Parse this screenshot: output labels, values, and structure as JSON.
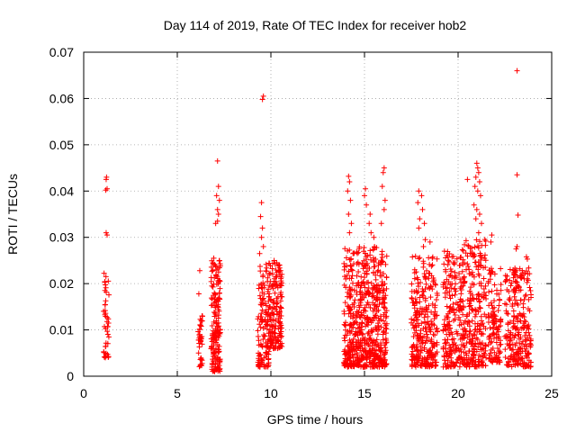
{
  "chart_data": {
    "type": "scatter",
    "title": "Day 114 of 2019, Rate Of TEC Index for receiver hob2",
    "xlabel": "GPS time / hours",
    "ylabel": "ROTI / TECUs",
    "xlim": [
      0,
      25
    ],
    "ylim": [
      0,
      0.07
    ],
    "xticks": [
      0,
      5,
      10,
      15,
      20,
      25
    ],
    "xtick_labels": [
      "0",
      "5",
      "10",
      "15",
      "20",
      "25"
    ],
    "yticks": [
      0,
      0.01,
      0.02,
      0.03,
      0.04,
      0.05,
      0.06,
      0.07
    ],
    "ytick_labels": [
      "0",
      "0.01",
      "0.02",
      "0.03",
      "0.04",
      "0.05",
      "0.06",
      "0.07"
    ],
    "grid": true,
    "marker": "+",
    "marker_color": "#ff0000",
    "clusters": [
      {
        "x": [
          1.05,
          1.35
        ],
        "ymin": 0.004,
        "ymax": 0.024,
        "n": 45,
        "outliers": [
          [
            1.22,
            0.043
          ],
          [
            1.2,
            0.0425
          ],
          [
            1.25,
            0.0405
          ],
          [
            1.18,
            0.0402
          ],
          [
            1.2,
            0.031
          ],
          [
            1.25,
            0.0305
          ]
        ]
      },
      {
        "x": [
          6.1,
          6.35
        ],
        "ymin": 0.002,
        "ymax": 0.0135,
        "n": 40,
        "outliers": [
          [
            6.2,
            0.0228
          ],
          [
            6.15,
            0.0178
          ]
        ]
      },
      {
        "x": [
          6.8,
          7.3
        ],
        "ymin": 0.001,
        "ymax": 0.025,
        "n": 180,
        "outliers": [
          [
            7.15,
            0.0465
          ],
          [
            7.2,
            0.041
          ],
          [
            7.1,
            0.039
          ],
          [
            7.25,
            0.038
          ],
          [
            7.15,
            0.036
          ],
          [
            7.2,
            0.035
          ],
          [
            7.05,
            0.033
          ],
          [
            7.15,
            0.0335
          ],
          [
            6.95,
            0.0255
          ]
        ]
      },
      {
        "x": [
          9.3,
          9.9
        ],
        "ymin": 0.002,
        "ymax": 0.025,
        "n": 130,
        "outliers": [
          [
            9.6,
            0.0605
          ],
          [
            9.55,
            0.0598
          ],
          [
            9.5,
            0.0375
          ],
          [
            9.45,
            0.0345
          ],
          [
            9.55,
            0.032
          ],
          [
            9.5,
            0.03
          ],
          [
            9.6,
            0.028
          ],
          [
            9.4,
            0.0265
          ]
        ]
      },
      {
        "x": [
          9.9,
          10.6
        ],
        "ymin": 0.006,
        "ymax": 0.025,
        "n": 170,
        "outliers": []
      },
      {
        "x": [
          13.9,
          16.2
        ],
        "ymin": 0.002,
        "ymax": 0.028,
        "n": 650,
        "outliers": [
          [
            14.15,
            0.0432
          ],
          [
            14.2,
            0.042
          ],
          [
            14.1,
            0.04
          ],
          [
            14.25,
            0.038
          ],
          [
            14.15,
            0.035
          ],
          [
            14.3,
            0.033
          ],
          [
            14.2,
            0.031
          ],
          [
            15.05,
            0.0405
          ],
          [
            15.0,
            0.039
          ],
          [
            15.1,
            0.037
          ],
          [
            15.3,
            0.035
          ],
          [
            15.25,
            0.033
          ],
          [
            15.35,
            0.031
          ],
          [
            15.5,
            0.03
          ],
          [
            16.05,
            0.045
          ],
          [
            16.0,
            0.044
          ],
          [
            15.95,
            0.041
          ],
          [
            16.1,
            0.038
          ],
          [
            16.05,
            0.036
          ],
          [
            15.9,
            0.033
          ]
        ]
      },
      {
        "x": [
          17.5,
          18.9
        ],
        "ymin": 0.002,
        "ymax": 0.026,
        "n": 300,
        "outliers": [
          [
            17.9,
            0.04
          ],
          [
            18.05,
            0.039
          ],
          [
            17.85,
            0.0375
          ],
          [
            18.1,
            0.036
          ],
          [
            17.95,
            0.034
          ],
          [
            17.9,
            0.032
          ],
          [
            18.2,
            0.033
          ],
          [
            18.25,
            0.0295
          ],
          [
            18.5,
            0.029
          ],
          [
            18.15,
            0.028
          ]
        ]
      },
      {
        "x": [
          19.2,
          20.2
        ],
        "ymin": 0.002,
        "ymax": 0.027,
        "n": 200,
        "outliers": []
      },
      {
        "x": [
          20.2,
          21.5
        ],
        "ymin": 0.002,
        "ymax": 0.03,
        "n": 280,
        "outliers": [
          [
            21.0,
            0.046
          ],
          [
            21.05,
            0.045
          ],
          [
            21.1,
            0.044
          ],
          [
            20.95,
            0.043
          ],
          [
            21.15,
            0.042
          ],
          [
            20.9,
            0.041
          ],
          [
            21.05,
            0.04
          ],
          [
            21.2,
            0.039
          ],
          [
            20.5,
            0.0425
          ],
          [
            20.85,
            0.037
          ],
          [
            21.0,
            0.036
          ],
          [
            21.15,
            0.035
          ],
          [
            20.95,
            0.034
          ],
          [
            21.25,
            0.033
          ],
          [
            21.1,
            0.031
          ]
        ]
      },
      {
        "x": [
          21.6,
          22.3
        ],
        "ymin": 0.003,
        "ymax": 0.024,
        "n": 120,
        "outliers": [
          [
            21.8,
            0.0305
          ],
          [
            21.75,
            0.029
          ]
        ]
      },
      {
        "x": [
          22.5,
          23.9
        ],
        "ymin": 0.002,
        "ymax": 0.024,
        "n": 260,
        "outliers": [
          [
            23.15,
            0.066
          ],
          [
            23.15,
            0.0435
          ],
          [
            23.2,
            0.0348
          ],
          [
            23.15,
            0.028
          ],
          [
            23.1,
            0.0275
          ],
          [
            23.65,
            0.0258
          ],
          [
            23.7,
            0.0253
          ],
          [
            23.3,
            0.0232
          ]
        ]
      }
    ]
  }
}
